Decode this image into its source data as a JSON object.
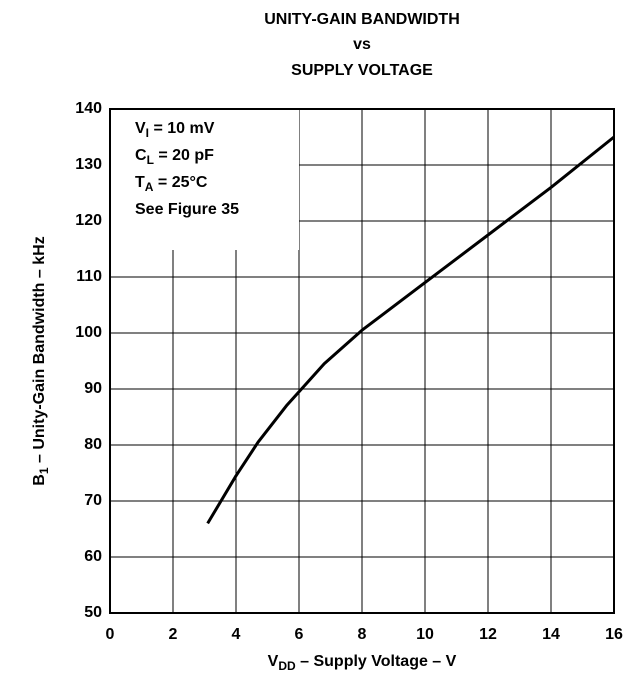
{
  "chart_data": {
    "type": "line",
    "title": [
      "UNITY-GAIN BANDWIDTH",
      "vs",
      "SUPPLY VOLTAGE"
    ],
    "x_label": {
      "main": "V",
      "sub": "DD",
      "rest": " – Supply Voltage – V"
    },
    "y_label": {
      "main": "B",
      "sub": "1",
      "rest": " – Unity-Gain Bandwidth – kHz"
    },
    "annotations": [
      {
        "main": "V",
        "sub": "I",
        "rest": " = 10 mV"
      },
      {
        "main": "C",
        "sub": "L",
        "rest": " = 20 pF"
      },
      {
        "main": "T",
        "sub": "A",
        "rest": " = 25°C"
      },
      {
        "main": "See Figure 35",
        "sub": "",
        "rest": ""
      }
    ],
    "x": [
      3.1,
      4,
      4.7,
      5.6,
      6.8,
      8,
      10,
      12,
      14,
      16
    ],
    "series": [
      {
        "name": "B1",
        "color": "#000000",
        "values": [
          66,
          74.5,
          80.5,
          87,
          94.5,
          100.5,
          109,
          117.5,
          126,
          135
        ]
      }
    ],
    "xlim": [
      0,
      16
    ],
    "xticks": [
      0,
      2,
      4,
      6,
      8,
      10,
      12,
      14,
      16
    ],
    "ylim": [
      50,
      140
    ],
    "yticks": [
      50,
      60,
      70,
      80,
      90,
      100,
      110,
      120,
      130,
      140
    ],
    "grid": true
  }
}
